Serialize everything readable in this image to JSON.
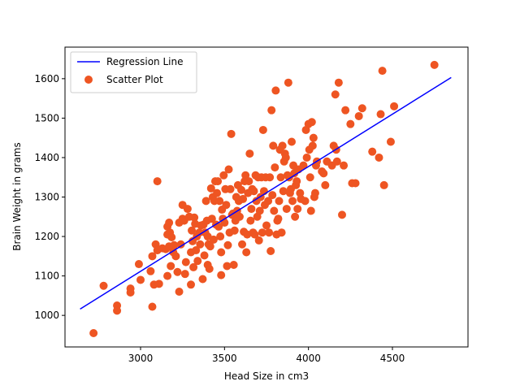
{
  "chart_data": {
    "type": "scatter",
    "title": "",
    "xlabel": "Head Size in cm3",
    "ylabel": "Brain Weight in grams",
    "xlim": [
      2550,
      4950
    ],
    "ylim": [
      920,
      1680
    ],
    "xticks": [
      3000,
      3500,
      4000,
      4500
    ],
    "yticks": [
      1000,
      1100,
      1200,
      1300,
      1400,
      1500,
      1600
    ],
    "grid": false,
    "legend_position": "top-left",
    "colors": {
      "line": "#0000ff",
      "scatter": "#ee5522"
    },
    "series": [
      {
        "name": "Regression Line",
        "type": "line",
        "x": [
          2640,
          4850
        ],
        "y": [
          1016,
          1603
        ]
      },
      {
        "name": "Scatter Plot",
        "type": "scatter",
        "points": [
          [
            2720,
            955
          ],
          [
            2780,
            1075
          ],
          [
            2860,
            1025
          ],
          [
            2860,
            1012
          ],
          [
            2940,
            1058
          ],
          [
            2940,
            1068
          ],
          [
            2990,
            1130
          ],
          [
            3000,
            1090
          ],
          [
            3060,
            1112
          ],
          [
            3070,
            1150
          ],
          [
            3070,
            1022
          ],
          [
            3080,
            1078
          ],
          [
            3090,
            1180
          ],
          [
            3100,
            1165
          ],
          [
            3100,
            1340
          ],
          [
            3110,
            1080
          ],
          [
            3130,
            1170
          ],
          [
            3150,
            1168
          ],
          [
            3160,
            1205
          ],
          [
            3160,
            1100
          ],
          [
            3160,
            1225
          ],
          [
            3170,
            1235
          ],
          [
            3170,
            1175
          ],
          [
            3175,
            1210
          ],
          [
            3180,
            1125
          ],
          [
            3185,
            1198
          ],
          [
            3195,
            1160
          ],
          [
            3200,
            1178
          ],
          [
            3210,
            1150
          ],
          [
            3220,
            1110
          ],
          [
            3230,
            1060
          ],
          [
            3230,
            1235
          ],
          [
            3240,
            1180
          ],
          [
            3250,
            1245
          ],
          [
            3250,
            1280
          ],
          [
            3260,
            1240
          ],
          [
            3265,
            1105
          ],
          [
            3270,
            1135
          ],
          [
            3280,
            1270
          ],
          [
            3290,
            1250
          ],
          [
            3300,
            1078
          ],
          [
            3300,
            1160
          ],
          [
            3305,
            1215
          ],
          [
            3310,
            1188
          ],
          [
            3315,
            1122
          ],
          [
            3320,
            1248
          ],
          [
            3325,
            1232
          ],
          [
            3330,
            1165
          ],
          [
            3335,
            1200
          ],
          [
            3340,
            1138
          ],
          [
            3350,
            1210
          ],
          [
            3355,
            1180
          ],
          [
            3360,
            1228
          ],
          [
            3370,
            1092
          ],
          [
            3375,
            1230
          ],
          [
            3380,
            1152
          ],
          [
            3385,
            1210
          ],
          [
            3390,
            1290
          ],
          [
            3395,
            1240
          ],
          [
            3400,
            1128
          ],
          [
            3400,
            1200
          ],
          [
            3405,
            1180
          ],
          [
            3410,
            1118
          ],
          [
            3415,
            1175
          ],
          [
            3420,
            1322
          ],
          [
            3425,
            1245
          ],
          [
            3430,
            1300
          ],
          [
            3435,
            1192
          ],
          [
            3440,
            1290
          ],
          [
            3445,
            1340
          ],
          [
            3450,
            1230
          ],
          [
            3455,
            1310
          ],
          [
            3460,
            1340
          ],
          [
            3465,
            1225
          ],
          [
            3470,
            1290
          ],
          [
            3475,
            1200
          ],
          [
            3480,
            1160
          ],
          [
            3480,
            1102
          ],
          [
            3485,
            1268
          ],
          [
            3490,
            1245
          ],
          [
            3495,
            1355
          ],
          [
            3500,
            1235
          ],
          [
            3505,
            1320
          ],
          [
            3510,
            1280
          ],
          [
            3515,
            1125
          ],
          [
            3520,
            1178
          ],
          [
            3525,
            1370
          ],
          [
            3530,
            1210
          ],
          [
            3535,
            1320
          ],
          [
            3540,
            1460
          ],
          [
            3545,
            1255
          ],
          [
            3550,
            1258
          ],
          [
            3555,
            1128
          ],
          [
            3560,
            1215
          ],
          [
            3565,
            1240
          ],
          [
            3570,
            1300
          ],
          [
            3575,
            1265
          ],
          [
            3580,
            1330
          ],
          [
            3585,
            1290
          ],
          [
            3590,
            1250
          ],
          [
            3600,
            1318
          ],
          [
            3605,
            1180
          ],
          [
            3610,
            1295
          ],
          [
            3615,
            1212
          ],
          [
            3620,
            1340
          ],
          [
            3625,
            1355
          ],
          [
            3630,
            1160
          ],
          [
            3635,
            1205
          ],
          [
            3640,
            1310
          ],
          [
            3645,
            1340
          ],
          [
            3650,
            1410
          ],
          [
            3655,
            1240
          ],
          [
            3660,
            1270
          ],
          [
            3665,
            1320
          ],
          [
            3670,
            1210
          ],
          [
            3675,
            1315
          ],
          [
            3680,
            1205
          ],
          [
            3685,
            1355
          ],
          [
            3690,
            1290
          ],
          [
            3695,
            1250
          ],
          [
            3700,
            1350
          ],
          [
            3705,
            1190
          ],
          [
            3710,
            1265
          ],
          [
            3715,
            1300
          ],
          [
            3720,
            1350
          ],
          [
            3725,
            1210
          ],
          [
            3730,
            1470
          ],
          [
            3735,
            1315
          ],
          [
            3740,
            1280
          ],
          [
            3745,
            1350
          ],
          [
            3750,
            1228
          ],
          [
            3760,
            1290
          ],
          [
            3765,
            1210
          ],
          [
            3770,
            1350
          ],
          [
            3775,
            1163
          ],
          [
            3780,
            1520
          ],
          [
            3785,
            1305
          ],
          [
            3790,
            1430
          ],
          [
            3795,
            1265
          ],
          [
            3800,
            1375
          ],
          [
            3805,
            1570
          ],
          [
            3810,
            1205
          ],
          [
            3815,
            1240
          ],
          [
            3820,
            1245
          ],
          [
            3825,
            1290
          ],
          [
            3830,
            1420
          ],
          [
            3835,
            1350
          ],
          [
            3840,
            1210
          ],
          [
            3845,
            1430
          ],
          [
            3850,
            1315
          ],
          [
            3855,
            1390
          ],
          [
            3860,
            1410
          ],
          [
            3865,
            1400
          ],
          [
            3870,
            1270
          ],
          [
            3875,
            1355
          ],
          [
            3880,
            1590
          ],
          [
            3885,
            1350
          ],
          [
            3890,
            1310
          ],
          [
            3895,
            1320
          ],
          [
            3900,
            1440
          ],
          [
            3905,
            1290
          ],
          [
            3910,
            1380
          ],
          [
            3915,
            1360
          ],
          [
            3920,
            1250
          ],
          [
            3925,
            1330
          ],
          [
            3930,
            1340
          ],
          [
            3935,
            1270
          ],
          [
            3940,
            1370
          ],
          [
            3950,
            1310
          ],
          [
            3955,
            1295
          ],
          [
            3970,
            1380
          ],
          [
            3980,
            1290
          ],
          [
            3985,
            1470
          ],
          [
            3990,
            1400
          ],
          [
            4000,
            1485
          ],
          [
            4005,
            1420
          ],
          [
            4010,
            1350
          ],
          [
            4015,
            1265
          ],
          [
            4020,
            1490
          ],
          [
            4025,
            1430
          ],
          [
            4030,
            1450
          ],
          [
            4035,
            1300
          ],
          [
            4040,
            1310
          ],
          [
            4045,
            1380
          ],
          [
            4050,
            1390
          ],
          [
            4080,
            1365
          ],
          [
            4090,
            1360
          ],
          [
            4100,
            1330
          ],
          [
            4110,
            1390
          ],
          [
            4140,
            1380
          ],
          [
            4150,
            1430
          ],
          [
            4160,
            1560
          ],
          [
            4165,
            1420
          ],
          [
            4170,
            1390
          ],
          [
            4180,
            1590
          ],
          [
            4200,
            1255
          ],
          [
            4210,
            1380
          ],
          [
            4220,
            1520
          ],
          [
            4250,
            1485
          ],
          [
            4260,
            1335
          ],
          [
            4280,
            1335
          ],
          [
            4300,
            1505
          ],
          [
            4320,
            1525
          ],
          [
            4380,
            1415
          ],
          [
            4420,
            1400
          ],
          [
            4430,
            1510
          ],
          [
            4440,
            1620
          ],
          [
            4450,
            1330
          ],
          [
            4490,
            1440
          ],
          [
            4510,
            1530
          ],
          [
            4750,
            1635
          ]
        ]
      }
    ]
  }
}
